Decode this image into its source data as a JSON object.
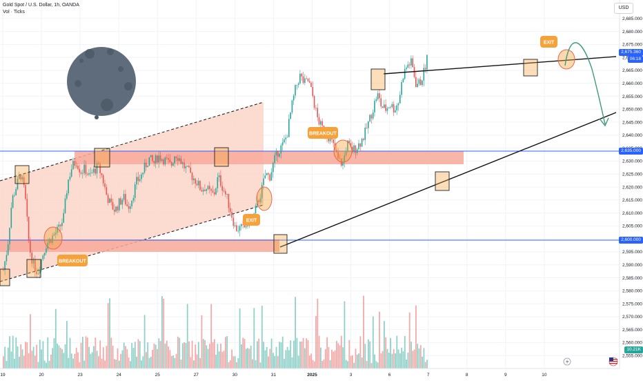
{
  "header": {
    "title": "Gold Spot / U.S. Dollar, 1h, OANDA",
    "indicator": "Vol · Ticks",
    "currency": "USD"
  },
  "colors": {
    "up": "#26a69a",
    "down": "#ef5350",
    "zone": "#f7a99a",
    "channel": "#fbd3c4",
    "level_line": "#2962ff",
    "note_orange": "#f5a23a",
    "projection": "#3c9a7d",
    "moon": "#5f6c7b"
  },
  "icons": [
    "moon-icon",
    "lightning-icon",
    "us-flag-icon"
  ],
  "chart_data": {
    "type": "candlestick",
    "title": "Gold Spot / U.S. Dollar, 1h, OANDA",
    "ylim": [
      2550,
      2690
    ],
    "y_ticks": [
      2555,
      2560,
      2565,
      2570,
      2575,
      2580,
      2585,
      2590,
      2595,
      2600,
      2605,
      2610,
      2615,
      2620,
      2625,
      2630,
      2635,
      2640,
      2645,
      2650,
      2655,
      2660,
      2665,
      2670,
      2675,
      2680,
      2685
    ],
    "y_tick_labels": [
      "2,555.000",
      "2,560.000",
      "2,565.000",
      "2,570.000",
      "2,575.000",
      "2,580.000",
      "2,585.000",
      "2,590.000",
      "2,595.000",
      "2,600.000",
      "2,605.000",
      "2,610.000",
      "2,615.000",
      "2,620.000",
      "2,625.000",
      "2,630.000",
      "2,635.000",
      "2,640.000",
      "2,645.000",
      "2,650.000",
      "2,655.000",
      "2,660.000",
      "2,665.000",
      "2,670.000",
      "2,675.000",
      "2,680.000",
      "2,685.000"
    ],
    "x_labels": [
      "19",
      "20",
      "23",
      "24",
      "25",
      "27",
      "30",
      "31",
      "2025",
      "3",
      "6",
      "7",
      "8",
      "9",
      "10"
    ],
    "x_label_index": [
      0,
      9,
      18,
      27,
      36,
      45,
      54,
      63,
      72,
      81,
      90,
      99,
      108,
      117,
      126
    ],
    "price_points": [
      [
        0,
        2588
      ],
      [
        1,
        2597
      ],
      [
        2,
        2615
      ],
      [
        3,
        2620
      ],
      [
        4,
        2625
      ],
      [
        5,
        2618
      ],
      [
        6,
        2597
      ],
      [
        7,
        2590
      ],
      [
        8,
        2587
      ],
      [
        9,
        2593
      ],
      [
        10,
        2598
      ],
      [
        11,
        2600
      ],
      [
        12,
        2602
      ],
      [
        13,
        2604
      ],
      [
        14,
        2608
      ],
      [
        15,
        2622
      ],
      [
        16,
        2628
      ],
      [
        17,
        2630
      ],
      [
        18,
        2626
      ],
      [
        19,
        2627
      ],
      [
        20,
        2624
      ],
      [
        21,
        2626
      ],
      [
        22,
        2628
      ],
      [
        23,
        2624
      ],
      [
        24,
        2617
      ],
      [
        25,
        2613
      ],
      [
        26,
        2611
      ],
      [
        27,
        2614
      ],
      [
        28,
        2616
      ],
      [
        29,
        2612
      ],
      [
        30,
        2616
      ],
      [
        31,
        2622
      ],
      [
        32,
        2624
      ],
      [
        33,
        2628
      ],
      [
        34,
        2631
      ],
      [
        35,
        2629
      ],
      [
        36,
        2632
      ],
      [
        37,
        2631
      ],
      [
        38,
        2630
      ],
      [
        39,
        2628
      ],
      [
        40,
        2633
      ],
      [
        41,
        2631
      ],
      [
        42,
        2628
      ],
      [
        43,
        2626
      ],
      [
        44,
        2624
      ],
      [
        45,
        2622
      ],
      [
        46,
        2619
      ],
      [
        47,
        2620
      ],
      [
        48,
        2618
      ],
      [
        49,
        2617
      ],
      [
        50,
        2624
      ],
      [
        51,
        2620
      ],
      [
        52,
        2616
      ],
      [
        53,
        2610
      ],
      [
        54,
        2604
      ],
      [
        55,
        2604
      ],
      [
        56,
        2604
      ],
      [
        57,
        2607
      ],
      [
        58,
        2607
      ],
      [
        59,
        2613
      ],
      [
        60,
        2618
      ],
      [
        61,
        2625
      ],
      [
        62,
        2624
      ],
      [
        63,
        2630
      ],
      [
        64,
        2634
      ],
      [
        65,
        2636
      ],
      [
        66,
        2640
      ],
      [
        67,
        2650
      ],
      [
        68,
        2658
      ],
      [
        69,
        2663
      ],
      [
        70,
        2660
      ],
      [
        71,
        2661
      ],
      [
        72,
        2655
      ],
      [
        73,
        2647
      ],
      [
        74,
        2643
      ],
      [
        75,
        2641
      ],
      [
        76,
        2639
      ],
      [
        77,
        2635
      ],
      [
        78,
        2630
      ],
      [
        79,
        2629
      ],
      [
        80,
        2637
      ],
      [
        81,
        2634
      ],
      [
        82,
        2635
      ],
      [
        83,
        2637
      ],
      [
        84,
        2640
      ],
      [
        85,
        2645
      ],
      [
        86,
        2650
      ],
      [
        87,
        2656
      ],
      [
        88,
        2651
      ],
      [
        89,
        2650
      ],
      [
        90,
        2652
      ],
      [
        91,
        2650
      ],
      [
        92,
        2653
      ],
      [
        93,
        2663
      ],
      [
        94,
        2667
      ],
      [
        95,
        2668
      ],
      [
        96,
        2660
      ],
      [
        97,
        2660
      ],
      [
        98,
        2665
      ],
      [
        99,
        2673
      ]
    ],
    "volume_max": "10.21K",
    "zones": [
      {
        "type": "resistance",
        "from": 2630,
        "to": 2636,
        "level": 2635
      },
      {
        "type": "support",
        "from": 2596,
        "to": 2601,
        "level": 2600
      }
    ],
    "horizontal_levels": [
      {
        "value": 2635,
        "label": "2,635.000"
      },
      {
        "value": 2600,
        "label": "2,600.000"
      }
    ],
    "current_price": {
      "label": "2,675.360",
      "timer": "06:18"
    },
    "annotations": [
      "BREAKOUT",
      "EXIT",
      "BREAKOUT",
      "EXIT"
    ]
  }
}
